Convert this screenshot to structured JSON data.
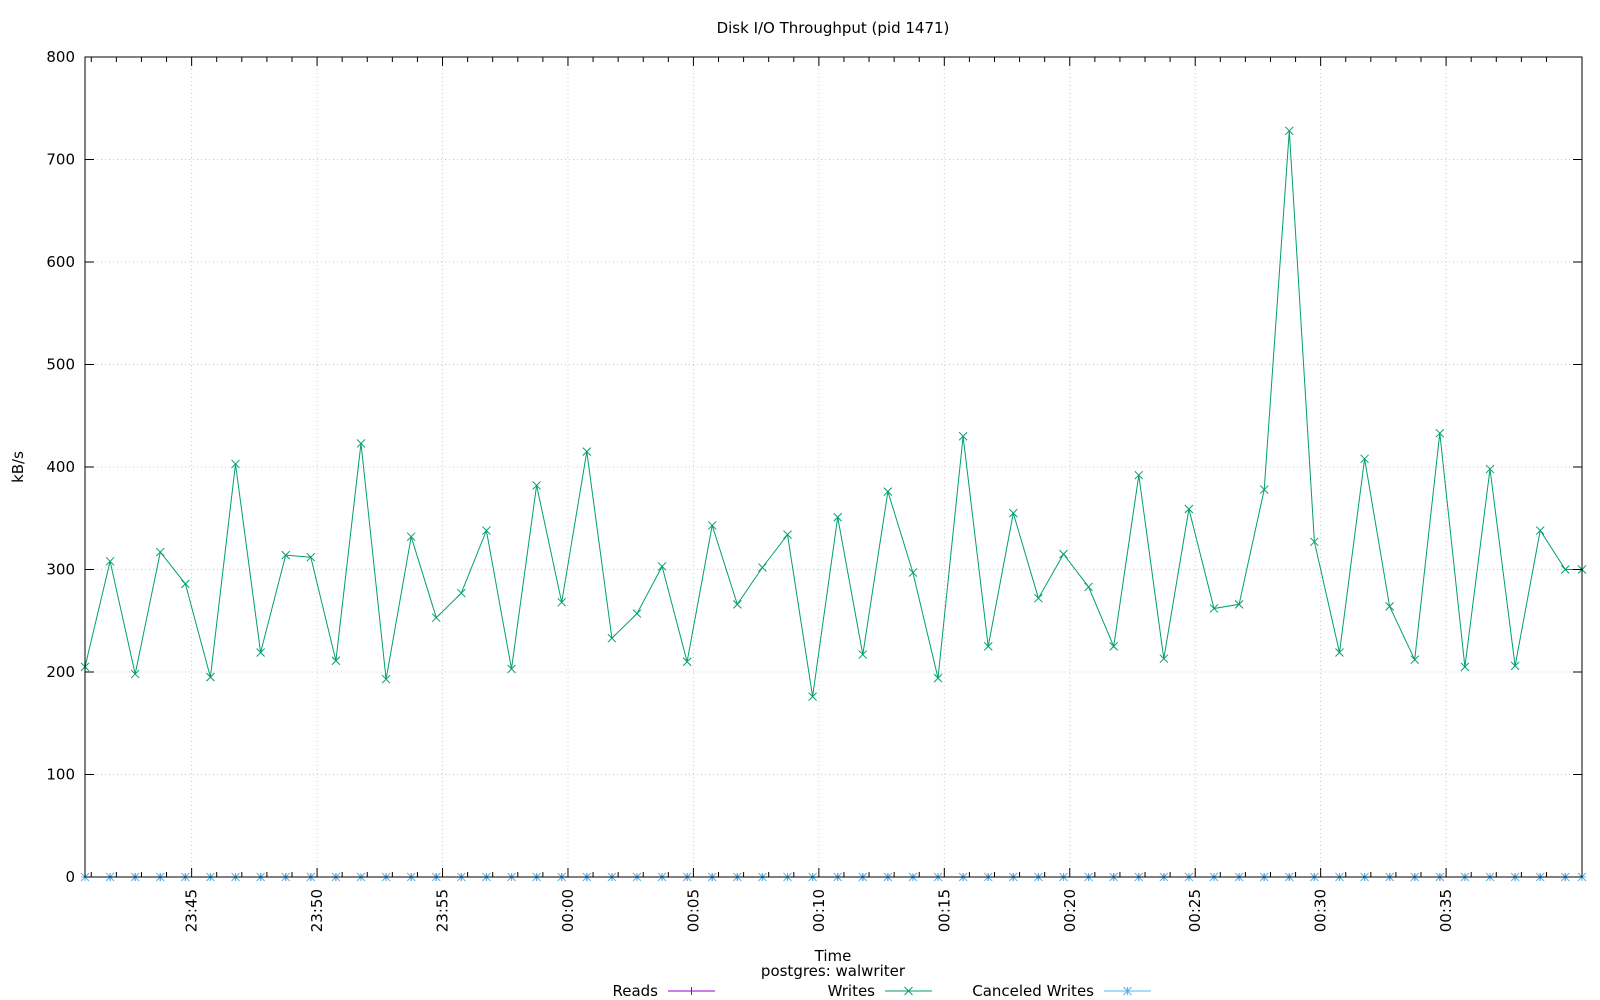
{
  "chart_data": {
    "type": "line",
    "title": "Disk I/O Throughput (pid 1471)",
    "xlabel": "Time",
    "subtitle": "postgres: walwriter",
    "ylabel": "kB/s",
    "ylim": [
      0,
      800
    ],
    "yticks": [
      0,
      100,
      200,
      300,
      400,
      500,
      600,
      700,
      800
    ],
    "xlim": [
      "23:40:45",
      "00:40:25"
    ],
    "xticks": [
      "23:45",
      "23:50",
      "23:55",
      "00:00",
      "00:05",
      "00:10",
      "00:15",
      "00:20",
      "00:25",
      "00:30",
      "00:35"
    ],
    "grid": true,
    "legend_position": "bottom",
    "x": [
      "23:40:45",
      "23:41:45",
      "23:42:45",
      "23:43:45",
      "23:44:45",
      "23:45:45",
      "23:46:45",
      "23:47:45",
      "23:48:45",
      "23:49:45",
      "23:50:45",
      "23:51:45",
      "23:52:45",
      "23:53:45",
      "23:54:45",
      "23:55:45",
      "23:56:45",
      "23:57:45",
      "23:58:45",
      "23:59:45",
      "00:00:45",
      "00:01:45",
      "00:02:45",
      "00:03:45",
      "00:04:45",
      "00:05:45",
      "00:06:45",
      "00:07:45",
      "00:08:45",
      "00:09:45",
      "00:10:45",
      "00:11:45",
      "00:12:45",
      "00:13:45",
      "00:14:45",
      "00:15:45",
      "00:16:45",
      "00:17:45",
      "00:18:45",
      "00:19:45",
      "00:20:45",
      "00:21:45",
      "00:22:45",
      "00:23:45",
      "00:24:45",
      "00:25:45",
      "00:26:45",
      "00:27:45",
      "00:28:45",
      "00:29:45",
      "00:30:45",
      "00:31:45",
      "00:32:45",
      "00:33:45",
      "00:34:45",
      "00:35:45",
      "00:36:45",
      "00:37:45",
      "00:38:45",
      "00:39:45",
      "00:40:25"
    ],
    "series": [
      {
        "name": "Reads",
        "color": "#9400d3",
        "marker": "plus",
        "values": [
          0,
          0,
          0,
          0,
          0,
          0,
          0,
          0,
          0,
          0,
          0,
          0,
          0,
          0,
          0,
          0,
          0,
          0,
          0,
          0,
          0,
          0,
          0,
          0,
          0,
          0,
          0,
          0,
          0,
          0,
          0,
          0,
          0,
          0,
          0,
          0,
          0,
          0,
          0,
          0,
          0,
          0,
          0,
          0,
          0,
          0,
          0,
          0,
          0,
          0,
          0,
          0,
          0,
          0,
          0,
          0,
          0,
          0,
          0,
          0,
          0
        ]
      },
      {
        "name": "Writes",
        "color": "#009e73",
        "marker": "cross",
        "values": [
          205,
          308,
          198,
          317,
          286,
          195,
          403,
          219,
          314,
          312,
          211,
          423,
          193,
          332,
          253,
          277,
          338,
          203,
          382,
          268,
          415,
          233,
          257,
          303,
          210,
          343,
          266,
          302,
          334,
          176,
          351,
          217,
          376,
          297,
          194,
          430,
          225,
          355,
          272,
          315,
          283,
          225,
          392,
          213,
          359,
          262,
          266,
          378,
          728,
          327,
          219,
          408,
          264,
          212,
          433,
          205,
          398,
          206,
          338,
          300,
          300
        ]
      },
      {
        "name": "Canceled Writes",
        "color": "#56b4e9",
        "marker": "star",
        "values": [
          0,
          0,
          0,
          0,
          0,
          0,
          0,
          0,
          0,
          0,
          0,
          0,
          0,
          0,
          0,
          0,
          0,
          0,
          0,
          0,
          0,
          0,
          0,
          0,
          0,
          0,
          0,
          0,
          0,
          0,
          0,
          0,
          0,
          0,
          0,
          0,
          0,
          0,
          0,
          0,
          0,
          0,
          0,
          0,
          0,
          0,
          0,
          0,
          0,
          0,
          0,
          0,
          0,
          0,
          0,
          0,
          0,
          0,
          0,
          0,
          0
        ]
      }
    ]
  }
}
